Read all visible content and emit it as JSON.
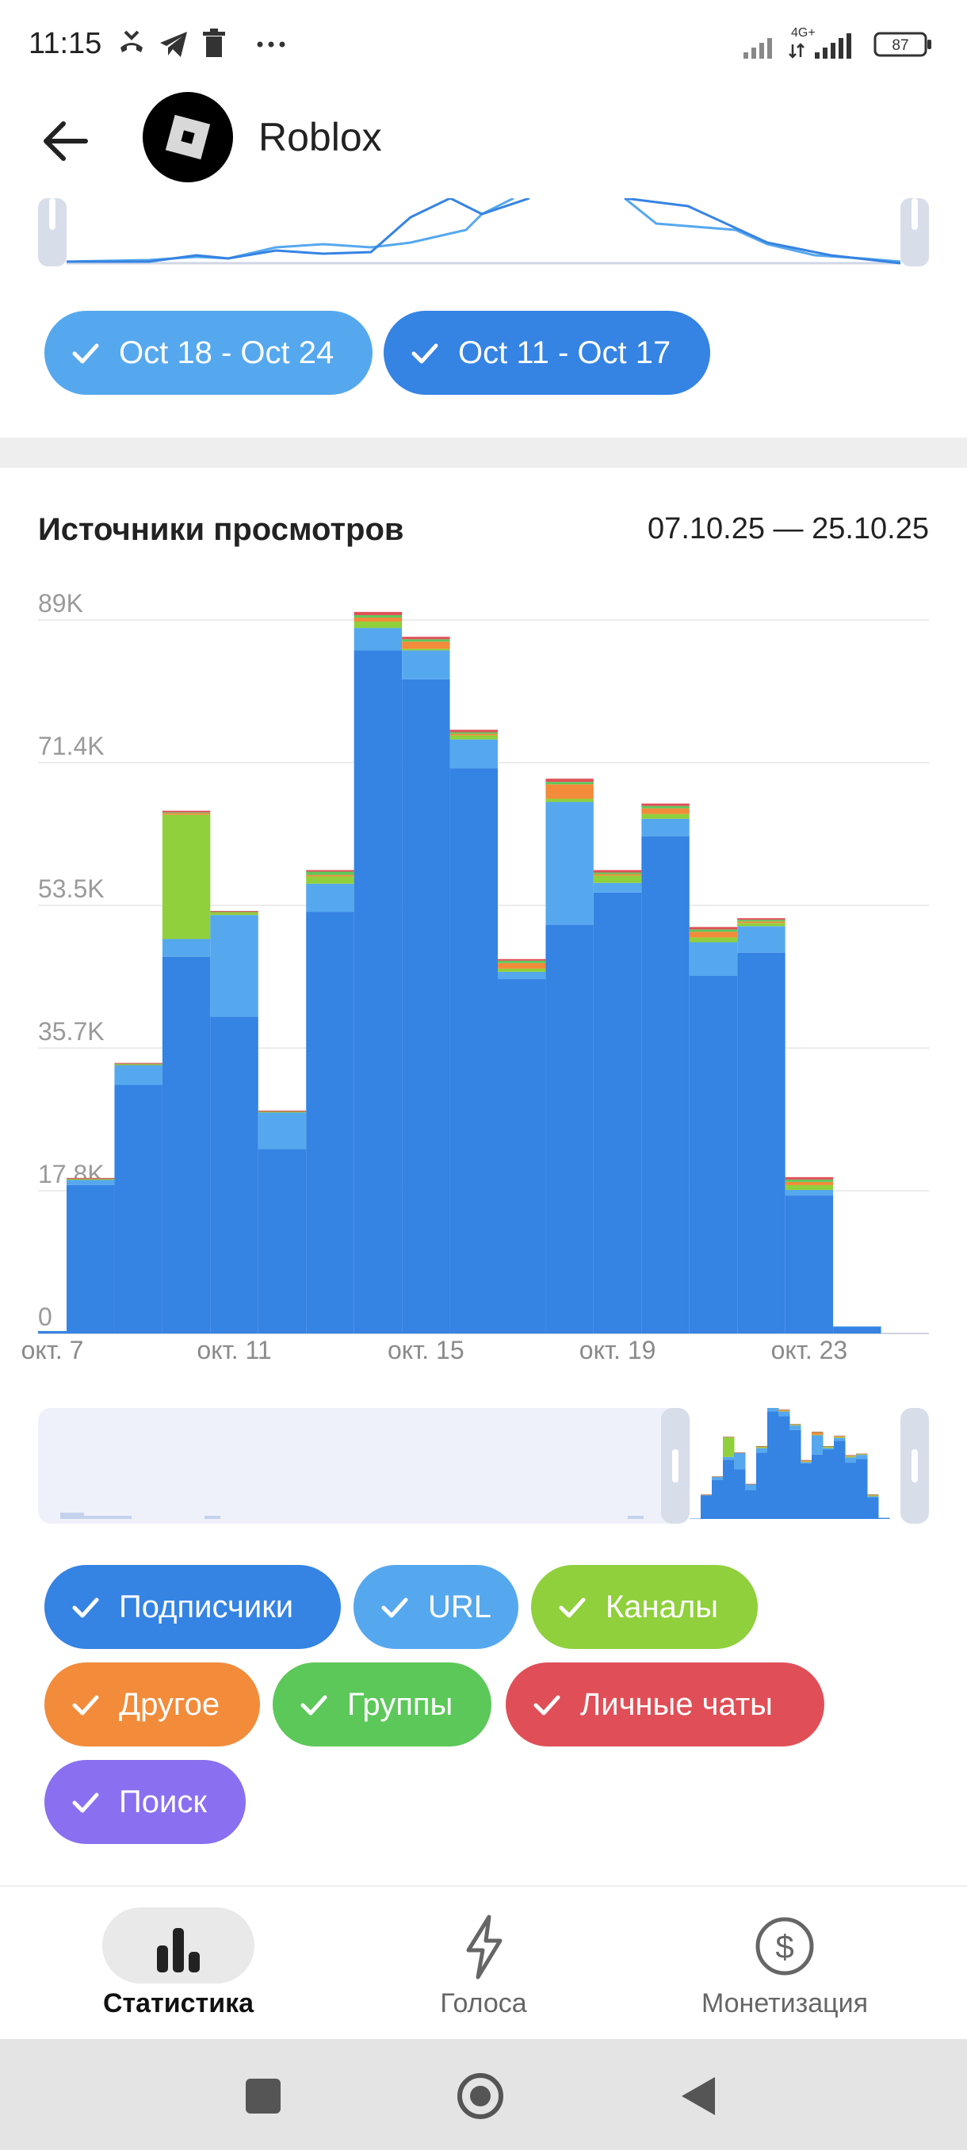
{
  "status_bar": {
    "time": "11:15",
    "network": "4G+",
    "battery": "87",
    "icons": [
      "missed-call-icon",
      "telegram-icon",
      "trash-icon",
      "more-dots-icon",
      "signal-icon",
      "battery-icon"
    ]
  },
  "app_bar": {
    "title": "Roblox",
    "icons": [
      "back-arrow-icon",
      "roblox-logo"
    ]
  },
  "top_chips": [
    {
      "label": "Oct 18 - Oct 24",
      "color": "#56a8ee"
    },
    {
      "label": "Oct 11 - Oct 17",
      "color": "#3583e3"
    }
  ],
  "section": {
    "title": "Источники просмотров",
    "date_range": "07.10.25 — 25.10.25"
  },
  "chart_data": {
    "type": "bar",
    "stacked": true,
    "x_tick_labels": [
      "окт. 7",
      "окт. 11",
      "окт. 15",
      "окт. 19",
      "окт. 23"
    ],
    "y_tick_labels": [
      "0",
      "17.8K",
      "35.7K",
      "53.5K",
      "71.4K",
      "89K"
    ],
    "ylim": [
      0,
      89000
    ],
    "grid": true,
    "categories": [
      "окт. 7",
      "окт. 8",
      "окт. 9",
      "окт. 10",
      "окт. 11",
      "окт. 12",
      "окт. 13",
      "окт. 14",
      "окт. 15",
      "окт. 16",
      "окт. 17",
      "окт. 18",
      "окт. 19",
      "окт. 20",
      "окт. 21",
      "окт. 22",
      "окт. 23",
      "окт. 24",
      "окт. 25"
    ],
    "series": [
      {
        "name": "Подписчики",
        "color": "#3583e3",
        "values": [
          300,
          18500,
          31000,
          47000,
          39500,
          23000,
          52600,
          85200,
          81600,
          70500,
          44200,
          51000,
          55000,
          62000,
          44600,
          47500,
          17200,
          800,
          0
        ]
      },
      {
        "name": "URL",
        "color": "#56a8ee",
        "values": [
          0,
          700,
          2500,
          2200,
          12700,
          4600,
          3500,
          2800,
          3600,
          3600,
          900,
          15300,
          1200,
          2200,
          4200,
          3300,
          700,
          100,
          0
        ]
      },
      {
        "name": "Каналы",
        "color": "#8fd03c",
        "values": [
          0,
          50,
          50,
          15500,
          300,
          50,
          900,
          800,
          200,
          500,
          400,
          400,
          900,
          600,
          600,
          400,
          600,
          0,
          0
        ]
      },
      {
        "name": "Другое",
        "color": "#f28b3a",
        "values": [
          0,
          50,
          50,
          200,
          50,
          50,
          200,
          500,
          900,
          200,
          700,
          1800,
          200,
          700,
          700,
          200,
          400,
          0,
          0
        ]
      },
      {
        "name": "Группы",
        "color": "#5cc85a",
        "values": [
          0,
          50,
          50,
          100,
          50,
          50,
          400,
          300,
          300,
          200,
          300,
          300,
          200,
          300,
          300,
          200,
          300,
          0,
          0
        ]
      },
      {
        "name": "Личные чаты",
        "color": "#e04f57",
        "values": [
          0,
          50,
          100,
          200,
          100,
          50,
          200,
          400,
          300,
          300,
          200,
          400,
          300,
          300,
          300,
          200,
          300,
          0,
          0
        ]
      },
      {
        "name": "Поиск",
        "color": "#8a6ff0",
        "values": [
          0,
          0,
          0,
          0,
          0,
          0,
          0,
          0,
          0,
          0,
          0,
          0,
          0,
          0,
          0,
          0,
          0,
          0,
          0
        ]
      }
    ]
  },
  "legend_chips": [
    {
      "label": "Подписчики",
      "color": "#3583e3"
    },
    {
      "label": "URL",
      "color": "#56a8ee"
    },
    {
      "label": "Каналы",
      "color": "#8fd03c"
    },
    {
      "label": "Другое",
      "color": "#f28b3a"
    },
    {
      "label": "Группы",
      "color": "#5cc85a"
    },
    {
      "label": "Личные чаты",
      "color": "#e04f57"
    },
    {
      "label": "Поиск",
      "color": "#8a6ff0"
    }
  ],
  "bottom_nav": [
    {
      "label": "Статистика",
      "active": true,
      "icon": "bar-chart-icon"
    },
    {
      "label": "Голоса",
      "active": false,
      "icon": "lightning-icon"
    },
    {
      "label": "Монетизация",
      "active": false,
      "icon": "dollar-circle-icon"
    }
  ]
}
